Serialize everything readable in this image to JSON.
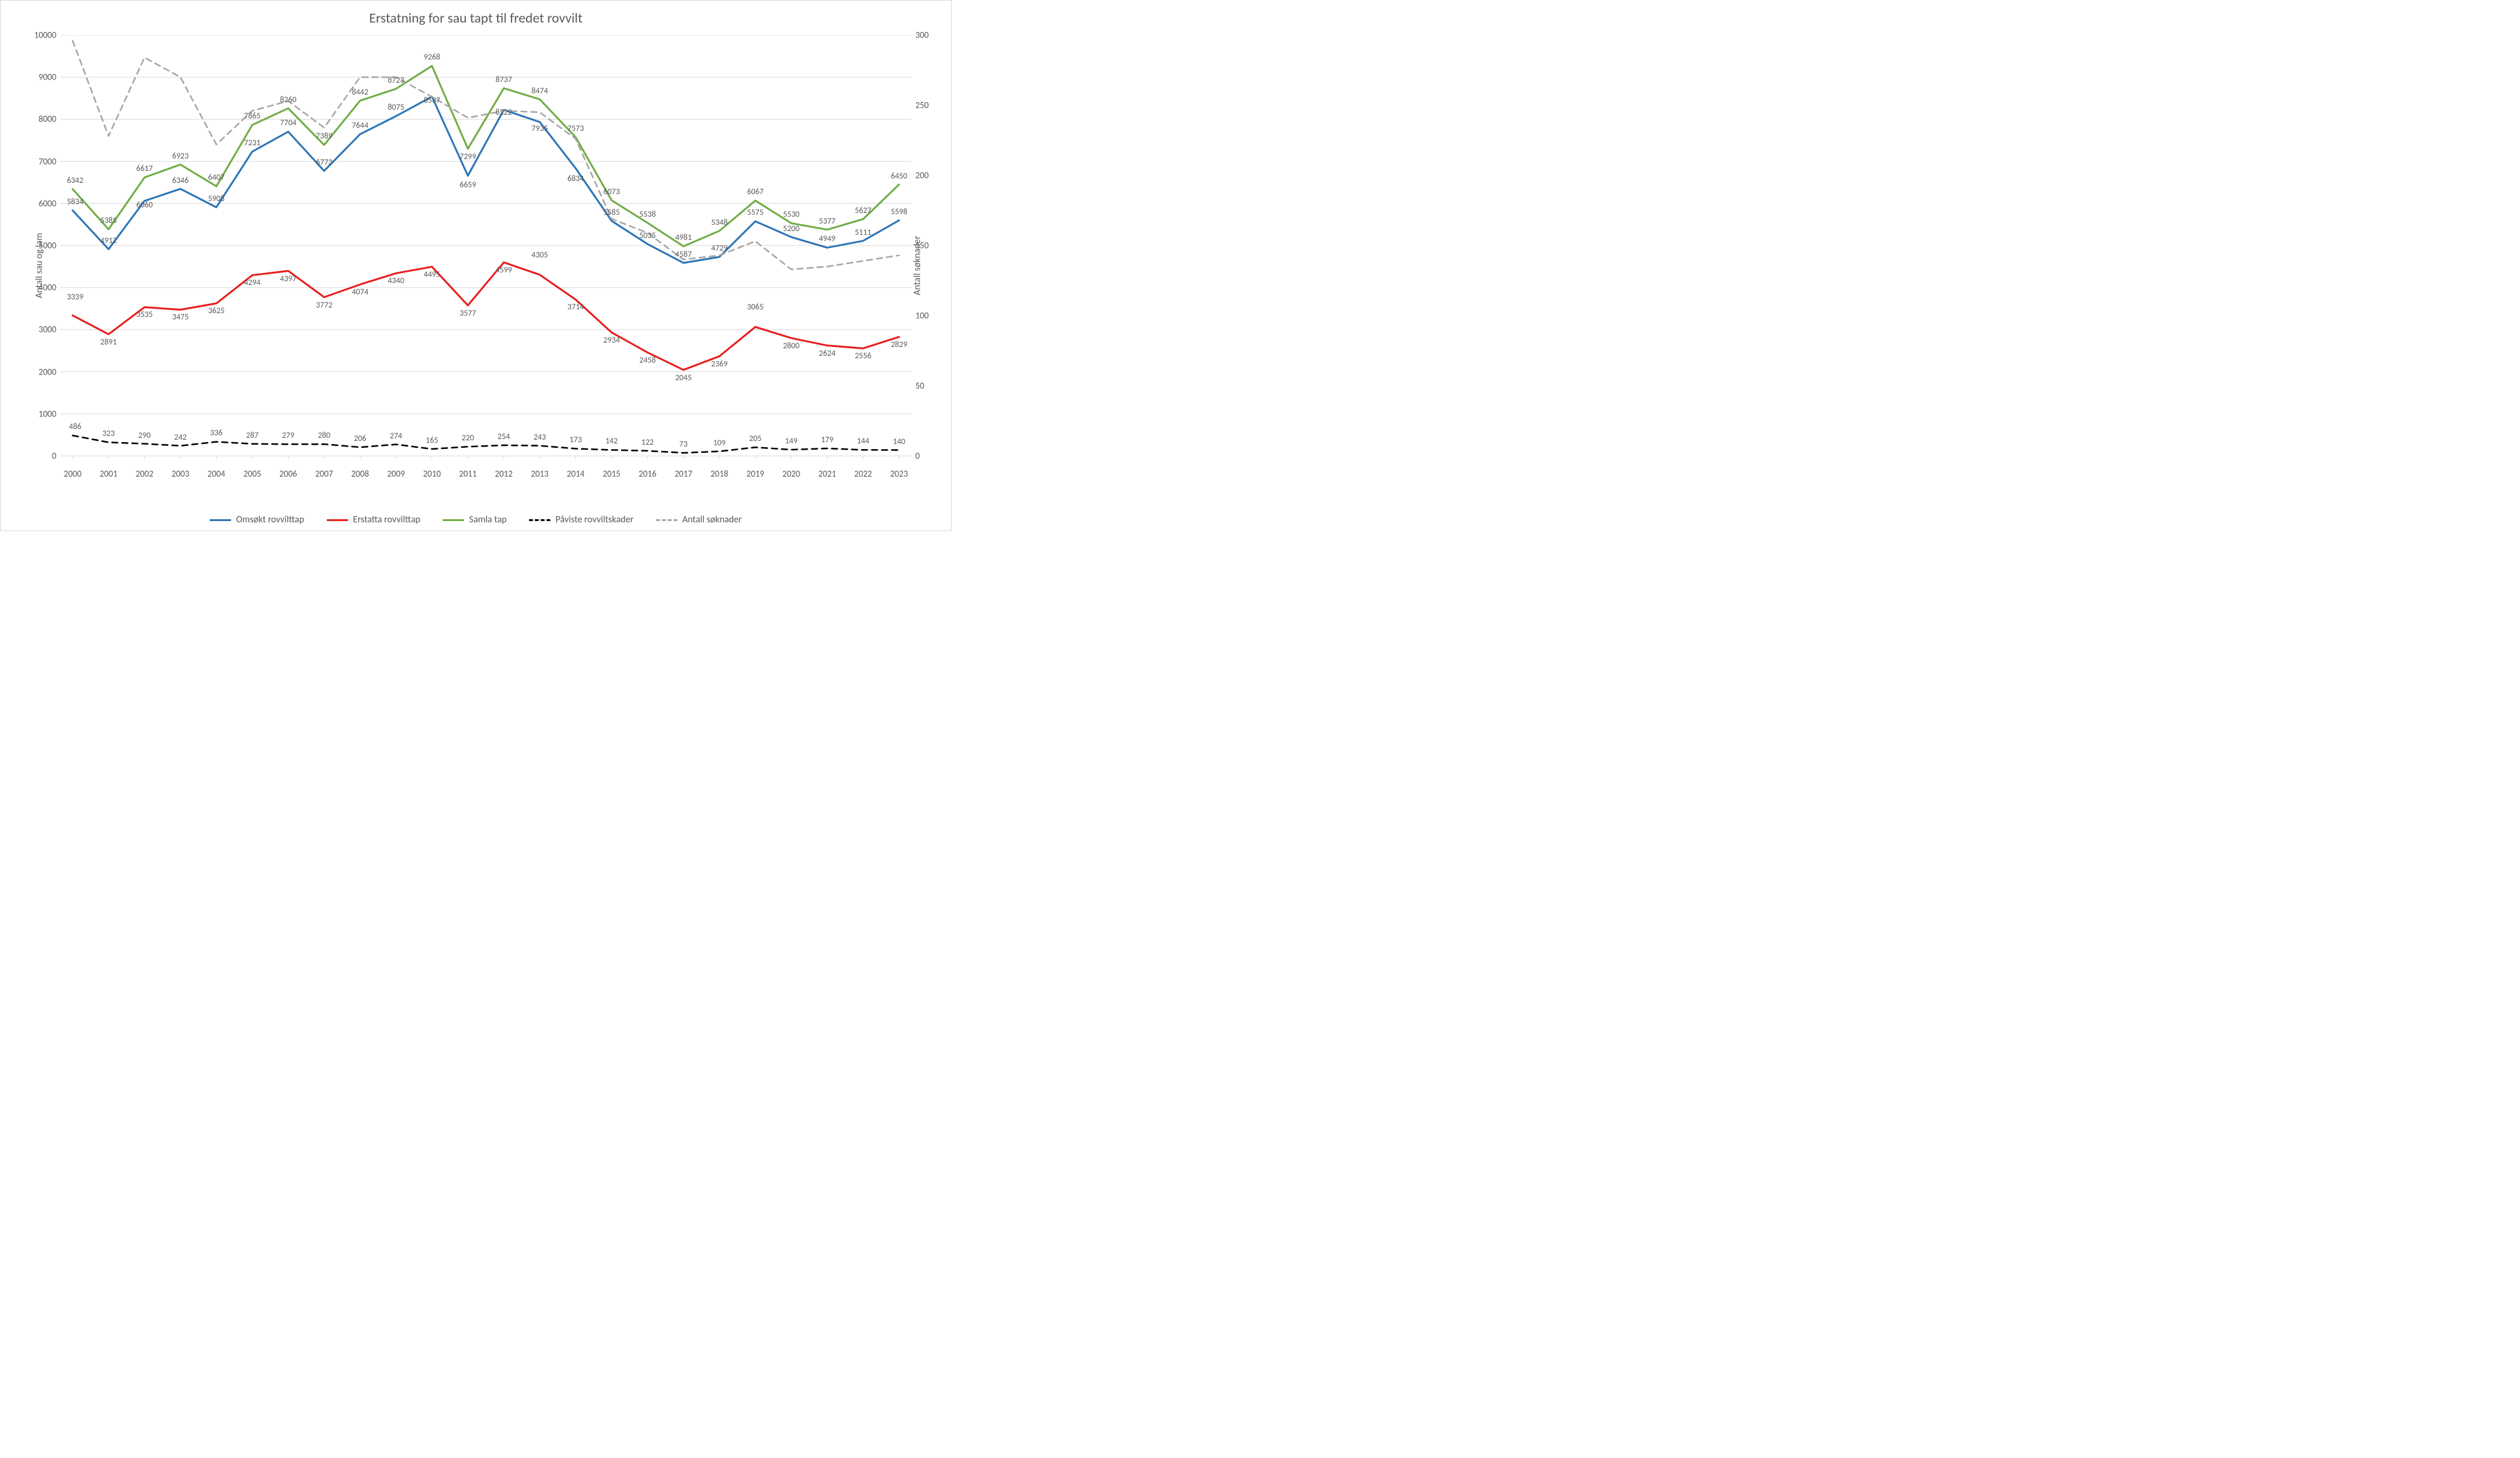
{
  "title": "Erstatning for sau tapt til fredet rovvilt",
  "y_label_left": "Antall sau og lam",
  "y_label_right": "Antall søknader",
  "font_family": "Calibri, Arial, sans-serif",
  "title_fontsize": 22,
  "axis_label_fontsize": 15,
  "tick_fontsize": 14,
  "data_label_fontsize": 13,
  "background_color": "#ffffff",
  "gridline_color": "#d9d9d9",
  "text_color": "#595959",
  "x": {
    "categories": [
      "2000",
      "2001",
      "2002",
      "2003",
      "2004",
      "2005",
      "2006",
      "2007",
      "2008",
      "2009",
      "2010",
      "2011",
      "2012",
      "2013",
      "2014",
      "2015",
      "2016",
      "2017",
      "2018",
      "2019",
      "2020",
      "2021",
      "2022",
      "2023"
    ]
  },
  "y_left": {
    "min": 0,
    "max": 10000,
    "step": 1000
  },
  "y_right": {
    "min": 0,
    "max": 300,
    "step": 50
  },
  "series": [
    {
      "name": "Omsøkt rovvilttap",
      "axis": "left",
      "color": "#2e75b6",
      "line_width": 3,
      "dash": false,
      "label_dy": -6,
      "label_dx_first": 4,
      "values": [
        5834,
        4912,
        6060,
        6346,
        5908,
        7231,
        7704,
        6773,
        7644,
        8075,
        8537,
        6659,
        8222,
        7935,
        6834,
        5585,
        5035,
        4587,
        4729,
        5575,
        5200,
        4949,
        5111,
        5598
      ],
      "label_offsets": {
        "2002": 14,
        "2010": 14,
        "2011": 22,
        "2012": 12,
        "2013": 18,
        "2014": 24
      }
    },
    {
      "name": "Erstatta rovvilttap",
      "axis": "left",
      "color": "#e81e1e",
      "line_width": 3,
      "dash": false,
      "label_dy": 20,
      "label_dx_first": 4,
      "values": [
        3339,
        2891,
        3535,
        3475,
        3625,
        4294,
        4397,
        3772,
        4074,
        4340,
        4495,
        3577,
        4599,
        4305,
        3714,
        2934,
        2458,
        2045,
        2369,
        3065,
        2800,
        2624,
        2556,
        2829
      ],
      "label_offsets": {
        "2000": -22,
        "2013": -24,
        "2019": -24
      }
    },
    {
      "name": "Samla tap",
      "axis": "left",
      "color": "#70ad47",
      "line_width": 3,
      "dash": false,
      "label_dy": -6,
      "label_dx_first": 4,
      "values": [
        6342,
        5385,
        6617,
        6923,
        6407,
        7865,
        8260,
        7389,
        8442,
        8723,
        9268,
        7299,
        8737,
        8474,
        7573,
        6073,
        5538,
        4981,
        5348,
        6067,
        5530,
        5377,
        5627,
        6450
      ],
      "label_offsets": {
        "2011": 20
      }
    },
    {
      "name": "Påviste rovviltskader",
      "axis": "left",
      "color": "#000000",
      "line_width": 2.5,
      "dash": true,
      "label_dy": -6,
      "label_dx_first": 4,
      "values": [
        486,
        323,
        290,
        242,
        336,
        287,
        279,
        280,
        206,
        274,
        165,
        220,
        254,
        243,
        173,
        142,
        122,
        73,
        109,
        205,
        149,
        179,
        144,
        140
      ]
    },
    {
      "name": "Antall søknader",
      "axis": "right",
      "color": "#a6a6a6",
      "line_width": 2.5,
      "dash": true,
      "label_dy": 0,
      "show_labels": false,
      "values": [
        296,
        228,
        284,
        270,
        222,
        246,
        253,
        234,
        270,
        270,
        256,
        241,
        246,
        245,
        226,
        169,
        159,
        140,
        143,
        153,
        133,
        135,
        139,
        143
      ]
    }
  ],
  "legend": [
    {
      "label": "Omsøkt rovvilttap",
      "color": "#2e75b6",
      "dash": false
    },
    {
      "label": "Erstatta rovvilttap",
      "color": "#e81e1e",
      "dash": false
    },
    {
      "label": "Samla tap",
      "color": "#70ad47",
      "dash": false
    },
    {
      "label": "Påviste rovviltskader",
      "color": "#000000",
      "dash": true
    },
    {
      "label": "Antall søknader",
      "color": "#a6a6a6",
      "dash": true
    }
  ]
}
